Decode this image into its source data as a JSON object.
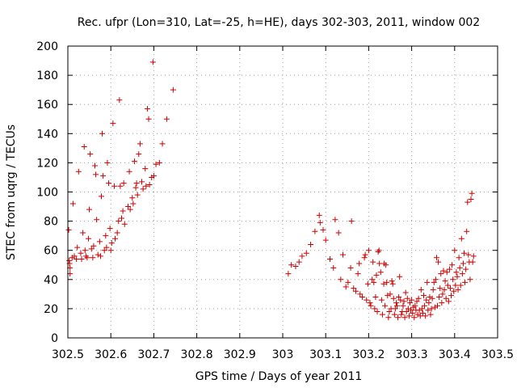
{
  "chart_data": {
    "type": "scatter",
    "title": "Rec. ufpr (Lon=310, Lat=-25, h=HE), days 302-303, 2011, window 002",
    "xlabel": "GPS time / Days of year 2011",
    "ylabel": "STEC from uqrg / TECUs",
    "xlim": [
      302.5,
      303.5
    ],
    "ylim": [
      0,
      200
    ],
    "xticks": [
      302.5,
      302.6,
      302.7,
      302.8,
      302.9,
      303.0,
      303.1,
      303.2,
      303.3,
      303.4,
      303.5
    ],
    "xtick_labels": [
      "302.5",
      "302.6",
      "302.7",
      "302.8",
      "302.9",
      "303",
      "303.1",
      "303.2",
      "303.3",
      "303.4",
      "303.5"
    ],
    "yticks": [
      0,
      20,
      40,
      60,
      80,
      100,
      120,
      140,
      160,
      180,
      200
    ],
    "ytick_labels": [
      "0",
      "20",
      "40",
      "60",
      "80",
      "100",
      "120",
      "140",
      "160",
      "180",
      "200"
    ],
    "grid": true,
    "marker": "plus",
    "color": "#cc0000",
    "series": [
      {
        "name": "STEC",
        "points": [
          [
            302.502,
            74
          ],
          [
            302.503,
            53
          ],
          [
            302.504,
            51
          ],
          [
            302.505,
            44
          ],
          [
            302.505,
            48
          ],
          [
            302.51,
            55
          ],
          [
            302.512,
            92
          ],
          [
            302.515,
            56
          ],
          [
            302.52,
            54
          ],
          [
            302.522,
            62
          ],
          [
            302.525,
            114
          ],
          [
            302.53,
            58
          ],
          [
            302.532,
            54
          ],
          [
            302.535,
            72
          ],
          [
            302.538,
            131
          ],
          [
            302.54,
            60
          ],
          [
            302.542,
            56
          ],
          [
            302.545,
            55
          ],
          [
            302.548,
            68
          ],
          [
            302.55,
            88
          ],
          [
            302.552,
            126
          ],
          [
            302.555,
            61
          ],
          [
            302.558,
            55
          ],
          [
            302.56,
            63
          ],
          [
            302.563,
            118
          ],
          [
            302.565,
            112
          ],
          [
            302.567,
            81
          ],
          [
            302.57,
            57
          ],
          [
            302.574,
            66
          ],
          [
            302.576,
            56
          ],
          [
            302.578,
            97
          ],
          [
            302.58,
            140
          ],
          [
            302.582,
            111
          ],
          [
            302.585,
            60
          ],
          [
            302.588,
            70
          ],
          [
            302.59,
            62
          ],
          [
            302.592,
            120
          ],
          [
            302.595,
            106
          ],
          [
            302.598,
            75
          ],
          [
            302.6,
            60
          ],
          [
            302.602,
            65
          ],
          [
            302.605,
            147
          ],
          [
            302.608,
            104
          ],
          [
            302.61,
            68
          ],
          [
            302.615,
            72
          ],
          [
            302.618,
            80
          ],
          [
            302.62,
            163
          ],
          [
            302.622,
            104
          ],
          [
            302.625,
            82
          ],
          [
            302.628,
            87
          ],
          [
            302.63,
            106
          ],
          [
            302.632,
            78
          ],
          [
            302.64,
            90
          ],
          [
            302.643,
            114
          ],
          [
            302.645,
            88
          ],
          [
            302.65,
            96
          ],
          [
            302.652,
            92
          ],
          [
            302.655,
            121
          ],
          [
            302.658,
            103
          ],
          [
            302.66,
            106
          ],
          [
            302.662,
            98
          ],
          [
            302.665,
            126
          ],
          [
            302.668,
            133
          ],
          [
            302.672,
            107
          ],
          [
            302.675,
            102
          ],
          [
            302.68,
            116
          ],
          [
            302.682,
            104
          ],
          [
            302.685,
            157
          ],
          [
            302.688,
            150
          ],
          [
            302.69,
            105
          ],
          [
            302.695,
            110
          ],
          [
            302.698,
            189
          ],
          [
            302.7,
            111
          ],
          [
            302.705,
            119
          ],
          [
            302.713,
            120
          ],
          [
            302.72,
            133
          ],
          [
            302.73,
            150
          ],
          [
            302.745,
            170
          ],
          [
            303.013,
            44
          ],
          [
            303.02,
            50
          ],
          [
            303.03,
            49
          ],
          [
            303.038,
            52
          ],
          [
            303.045,
            56
          ],
          [
            303.055,
            58
          ],
          [
            303.065,
            64
          ],
          [
            303.075,
            73
          ],
          [
            303.085,
            84
          ],
          [
            303.087,
            79
          ],
          [
            303.094,
            74
          ],
          [
            303.1,
            67
          ],
          [
            303.11,
            54
          ],
          [
            303.118,
            48
          ],
          [
            303.122,
            81
          ],
          [
            303.13,
            72
          ],
          [
            303.135,
            40
          ],
          [
            303.14,
            57
          ],
          [
            303.147,
            35
          ],
          [
            303.152,
            38
          ],
          [
            303.158,
            48
          ],
          [
            303.16,
            80
          ],
          [
            303.165,
            34
          ],
          [
            303.17,
            32
          ],
          [
            303.175,
            44
          ],
          [
            303.178,
            51
          ],
          [
            303.18,
            30
          ],
          [
            303.185,
            28
          ],
          [
            303.19,
            55
          ],
          [
            303.192,
            57
          ],
          [
            303.195,
            26
          ],
          [
            303.198,
            37
          ],
          [
            303.2,
            60
          ],
          [
            303.203,
            24
          ],
          [
            303.205,
            22
          ],
          [
            303.208,
            40
          ],
          [
            303.21,
            52
          ],
          [
            303.212,
            38
          ],
          [
            303.214,
            20
          ],
          [
            303.216,
            28
          ],
          [
            303.218,
            43
          ],
          [
            303.22,
            18
          ],
          [
            303.222,
            59
          ],
          [
            303.224,
            60
          ],
          [
            303.225,
            51
          ],
          [
            303.228,
            45
          ],
          [
            303.23,
            26
          ],
          [
            303.232,
            16
          ],
          [
            303.235,
            37
          ],
          [
            303.236,
            51
          ],
          [
            303.238,
            22
          ],
          [
            303.24,
            50
          ],
          [
            303.242,
            38
          ],
          [
            303.244,
            29
          ],
          [
            303.246,
            14
          ],
          [
            303.248,
            18
          ],
          [
            303.25,
            30
          ],
          [
            303.252,
            20
          ],
          [
            303.254,
            39
          ],
          [
            303.256,
            37
          ],
          [
            303.258,
            27
          ],
          [
            303.26,
            16
          ],
          [
            303.262,
            20
          ],
          [
            303.264,
            24
          ],
          [
            303.266,
            22
          ],
          [
            303.268,
            14
          ],
          [
            303.27,
            28
          ],
          [
            303.272,
            42
          ],
          [
            303.274,
            26
          ],
          [
            303.276,
            16
          ],
          [
            303.278,
            18
          ],
          [
            303.28,
            22
          ],
          [
            303.282,
            25
          ],
          [
            303.284,
            14
          ],
          [
            303.286,
            31
          ],
          [
            303.288,
            18
          ],
          [
            303.29,
            27
          ],
          [
            303.292,
            20
          ],
          [
            303.294,
            15
          ],
          [
            303.296,
            24
          ],
          [
            303.298,
            19
          ],
          [
            303.3,
            26
          ],
          [
            303.302,
            17
          ],
          [
            303.304,
            21
          ],
          [
            303.306,
            14
          ],
          [
            303.308,
            22
          ],
          [
            303.31,
            19
          ],
          [
            303.312,
            25
          ],
          [
            303.314,
            16
          ],
          [
            303.316,
            27
          ],
          [
            303.318,
            19
          ],
          [
            303.32,
            15
          ],
          [
            303.322,
            33
          ],
          [
            303.324,
            20
          ],
          [
            303.326,
            17
          ],
          [
            303.328,
            29
          ],
          [
            303.33,
            22
          ],
          [
            303.332,
            15
          ],
          [
            303.334,
            26
          ],
          [
            303.336,
            38
          ],
          [
            303.338,
            19
          ],
          [
            303.34,
            24
          ],
          [
            303.342,
            28
          ],
          [
            303.344,
            16
          ],
          [
            303.346,
            20
          ],
          [
            303.348,
            27
          ],
          [
            303.35,
            33
          ],
          [
            303.352,
            38
          ],
          [
            303.354,
            21
          ],
          [
            303.356,
            40
          ],
          [
            303.358,
            55
          ],
          [
            303.36,
            22
          ],
          [
            303.362,
            52
          ],
          [
            303.364,
            28
          ],
          [
            303.366,
            34
          ],
          [
            303.368,
            44
          ],
          [
            303.37,
            24
          ],
          [
            303.372,
            30
          ],
          [
            303.374,
            46
          ],
          [
            303.376,
            33
          ],
          [
            303.378,
            39
          ],
          [
            303.38,
            27
          ],
          [
            303.382,
            45
          ],
          [
            303.384,
            36
          ],
          [
            303.386,
            25
          ],
          [
            303.388,
            47
          ],
          [
            303.39,
            34
          ],
          [
            303.392,
            29
          ],
          [
            303.394,
            50
          ],
          [
            303.396,
            40
          ],
          [
            303.398,
            32
          ],
          [
            303.4,
            60
          ],
          [
            303.402,
            36
          ],
          [
            303.404,
            45
          ],
          [
            303.406,
            42
          ],
          [
            303.408,
            33
          ],
          [
            303.41,
            55
          ],
          [
            303.412,
            48
          ],
          [
            303.414,
            36
          ],
          [
            303.416,
            68
          ],
          [
            303.418,
            44
          ],
          [
            303.42,
            51
          ],
          [
            303.422,
            58
          ],
          [
            303.424,
            38
          ],
          [
            303.426,
            47
          ],
          [
            303.428,
            73
          ],
          [
            303.43,
            93
          ],
          [
            303.432,
            57
          ],
          [
            303.434,
            52
          ],
          [
            303.436,
            40
          ],
          [
            303.438,
            95
          ],
          [
            303.44,
            99
          ],
          [
            303.442,
            52
          ],
          [
            303.444,
            56
          ]
        ]
      }
    ]
  }
}
